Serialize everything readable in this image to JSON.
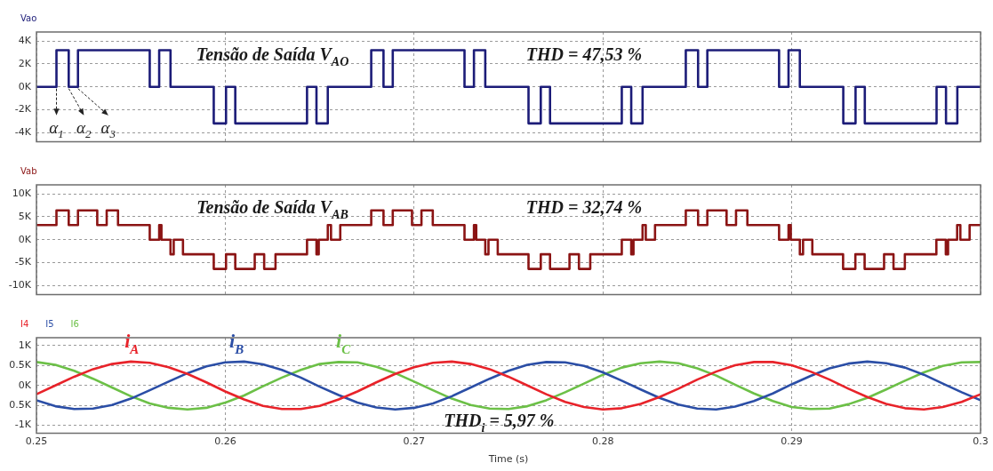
{
  "chart_data": [
    {
      "type": "step",
      "legend": "top left",
      "grid": true,
      "tick_labels": "y",
      "series": [
        {
          "name": "Vao",
          "color": "#1c1c78",
          "x": [
            0.25,
            0.25106,
            0.25171,
            0.2522,
            0.256,
            0.2565,
            0.2571,
            0.25939,
            0.26004,
            0.26053,
            0.26433,
            0.26483,
            0.26543,
            0.26773,
            0.26838,
            0.26887,
            0.27267,
            0.27317,
            0.27377,
            0.27606,
            0.27671,
            0.2772,
            0.281,
            0.2815,
            0.2821,
            0.28439,
            0.28504,
            0.28553,
            0.28933,
            0.28983,
            0.29043,
            0.29273,
            0.29338,
            0.29387,
            0.29767,
            0.29817,
            0.29877,
            0.3
          ],
          "values": [
            0,
            3200,
            0,
            3200,
            0,
            3200,
            0,
            -3200,
            0,
            -3200,
            0,
            -3200,
            0,
            3200,
            0,
            3200,
            0,
            3200,
            0,
            -3200,
            0,
            -3200,
            0,
            -3200,
            0,
            3200,
            0,
            3200,
            0,
            3200,
            0,
            -3200,
            0,
            -3200,
            0,
            -3200,
            0,
            0
          ]
        }
      ],
      "xlim": [
        0.25,
        0.3
      ],
      "xticks": [
        0.25,
        0.26,
        0.27,
        0.28,
        0.29,
        0.3
      ],
      "ylim": [
        -4800,
        4800
      ],
      "yticks": [
        {
          "value": 4000,
          "label": "4K"
        },
        {
          "value": 2000,
          "label": "2K"
        },
        {
          "value": 0,
          "label": "0K"
        },
        {
          "value": -2000,
          "label": "-2K"
        },
        {
          "value": -4000,
          "label": "-4K"
        }
      ],
      "annotations": [
        "Tensão de Saída V$_{AO}$",
        "THD = 47,53 %",
        {
          "text": "α$_{1}$",
          "x": 0.25106,
          "y": 0
        },
        {
          "text": "α$_{2}$",
          "x": 0.25171,
          "y": 0
        },
        {
          "text": "α$_{3}$",
          "x": 0.2522,
          "y": 0
        }
      ]
    },
    {
      "type": "step",
      "legend": "top left",
      "grid": true,
      "tick_labels": "y",
      "series": [
        {
          "name": "Vab",
          "color": "#8b1414",
          "x": [
            0.25,
            0.25106,
            0.25171,
            0.2522,
            0.25322,
            0.25372,
            0.25432,
            0.256,
            0.2565,
            0.25662,
            0.2571,
            0.25727,
            0.25776,
            0.25939,
            0.26004,
            0.26053,
            0.26156,
            0.26206,
            0.26266,
            0.26433,
            0.26483,
            0.26495,
            0.26543,
            0.2656,
            0.26609,
            0.26773,
            0.26838,
            0.26887,
            0.26989,
            0.27039,
            0.27099,
            0.27267,
            0.27317,
            0.27329,
            0.27377,
            0.27394,
            0.27443,
            0.27606,
            0.27671,
            0.2772,
            0.27823,
            0.27873,
            0.27933,
            0.281,
            0.2815,
            0.28162,
            0.2821,
            0.28227,
            0.28276,
            0.28439,
            0.28504,
            0.28553,
            0.28655,
            0.28705,
            0.28765,
            0.28933,
            0.28983,
            0.28995,
            0.29043,
            0.2906,
            0.29109,
            0.29272,
            0.29337,
            0.29386,
            0.29489,
            0.29539,
            0.29599,
            0.29766,
            0.29816,
            0.29828,
            0.29876,
            0.29893,
            0.29942,
            0.3
          ],
          "values": [
            3200,
            6400,
            3200,
            6400,
            3200,
            6400,
            3200,
            0,
            3200,
            0,
            -3200,
            0,
            -3200,
            -6400,
            -3200,
            -6400,
            -3200,
            -6400,
            -3200,
            0,
            -3200,
            0,
            3200,
            0,
            3200,
            6400,
            3200,
            6400,
            3200,
            6400,
            3200,
            0,
            3200,
            0,
            -3200,
            0,
            -3200,
            -6400,
            -3200,
            -6400,
            -3200,
            -6400,
            -3200,
            0,
            -3200,
            0,
            3200,
            0,
            3200,
            6400,
            3200,
            6400,
            3200,
            6400,
            3200,
            0,
            3200,
            0,
            -3200,
            0,
            -3200,
            -6400,
            -3200,
            -6400,
            -3200,
            -6400,
            -3200,
            0,
            -3200,
            0,
            3200,
            0,
            3200,
            3200
          ]
        }
      ],
      "xlim": [
        0.25,
        0.3
      ],
      "xticks": [
        0.25,
        0.26,
        0.27,
        0.28,
        0.29,
        0.3
      ],
      "ylim": [
        -12000,
        12000
      ],
      "yticks": [
        {
          "value": 10000,
          "label": "10K"
        },
        {
          "value": 5000,
          "label": "5K"
        },
        {
          "value": 0,
          "label": "0K"
        },
        {
          "value": -5000,
          "label": "-5K"
        },
        {
          "value": -10000,
          "label": "-10K"
        }
      ],
      "annotations": [
        "Tensão de Saída V$_{AB}$",
        "THD = 32,74 %"
      ]
    },
    {
      "type": "line",
      "legend": "top left",
      "grid": true,
      "xlabel": "Time (s)",
      "x": [
        0.25,
        0.251,
        0.252,
        0.253,
        0.254,
        0.255,
        0.256,
        0.257,
        0.258,
        0.259,
        0.26,
        0.261,
        0.262,
        0.263,
        0.264,
        0.265,
        0.266,
        0.267,
        0.268,
        0.269,
        0.27,
        0.271,
        0.272,
        0.273,
        0.274,
        0.275,
        0.276,
        0.277,
        0.278,
        0.279,
        0.28,
        0.281,
        0.282,
        0.283,
        0.284,
        0.285,
        0.286,
        0.287,
        0.288,
        0.289,
        0.29,
        0.291,
        0.292,
        0.293,
        0.294,
        0.295,
        0.296,
        0.297,
        0.298,
        0.299,
        0.3
      ],
      "series": [
        {
          "name": "I4",
          "color": "#e8232a",
          "values": [
            -220,
            0,
            220,
            410,
            540,
            600,
            570,
            460,
            290,
            80,
            -150,
            -350,
            -510,
            -590,
            -590,
            -510,
            -350,
            -150,
            80,
            290,
            460,
            570,
            600,
            540,
            410,
            220,
            0,
            -220,
            -410,
            -540,
            -600,
            -570,
            -460,
            -290,
            -80,
            150,
            350,
            510,
            590,
            590,
            510,
            350,
            150,
            -80,
            -290,
            -460,
            -570,
            -600,
            -540,
            -410,
            -220
          ]
        },
        {
          "name": "I5",
          "color": "#2b4ea6",
          "values": [
            -370,
            -520,
            -590,
            -580,
            -490,
            -330,
            -120,
            100,
            310,
            480,
            580,
            600,
            530,
            390,
            200,
            -30,
            -240,
            -430,
            -550,
            -600,
            -560,
            -450,
            -270,
            -50,
            170,
            370,
            520,
            590,
            580,
            490,
            330,
            120,
            -100,
            -310,
            -480,
            -580,
            -600,
            -530,
            -390,
            -200,
            30,
            240,
            430,
            550,
            600,
            560,
            450,
            270,
            50,
            -170,
            -370
          ]
        },
        {
          "name": "I6",
          "color": "#6cc047",
          "values": [
            590,
            520,
            370,
            170,
            -50,
            -270,
            -450,
            -560,
            -600,
            -560,
            -430,
            -250,
            -20,
            200,
            390,
            540,
            590,
            580,
            470,
            310,
            100,
            -120,
            -330,
            -490,
            -580,
            -590,
            -520,
            -370,
            -170,
            50,
            270,
            450,
            560,
            600,
            560,
            430,
            250,
            20,
            -200,
            -390,
            -540,
            -590,
            -580,
            -470,
            -310,
            -100,
            120,
            330,
            490,
            580,
            590
          ]
        }
      ],
      "xlim": [
        0.25,
        0.3
      ],
      "xticks": [
        0.25,
        0.26,
        0.27,
        0.28,
        0.29,
        0.3
      ],
      "ylim": [
        -1200,
        1200
      ],
      "yticks": [
        {
          "value": 1000,
          "label": "1K"
        },
        {
          "value": 500,
          "label": "0.5K"
        },
        {
          "value": 0,
          "label": "0K"
        },
        {
          "value": -500,
          "label": "0.5K"
        },
        {
          "value": -1000,
          "label": "-1K"
        }
      ],
      "annotations": [
        {
          "text": "i$_{A}$",
          "x": 0.25505,
          "y": 600
        },
        {
          "text": "i$_{B}$",
          "x": 0.2606,
          "y": 600
        },
        {
          "text": "i$_{C}$",
          "x": 0.26625,
          "y": 600
        },
        "THD$_{i}$ = 5,97 %"
      ]
    }
  ]
}
